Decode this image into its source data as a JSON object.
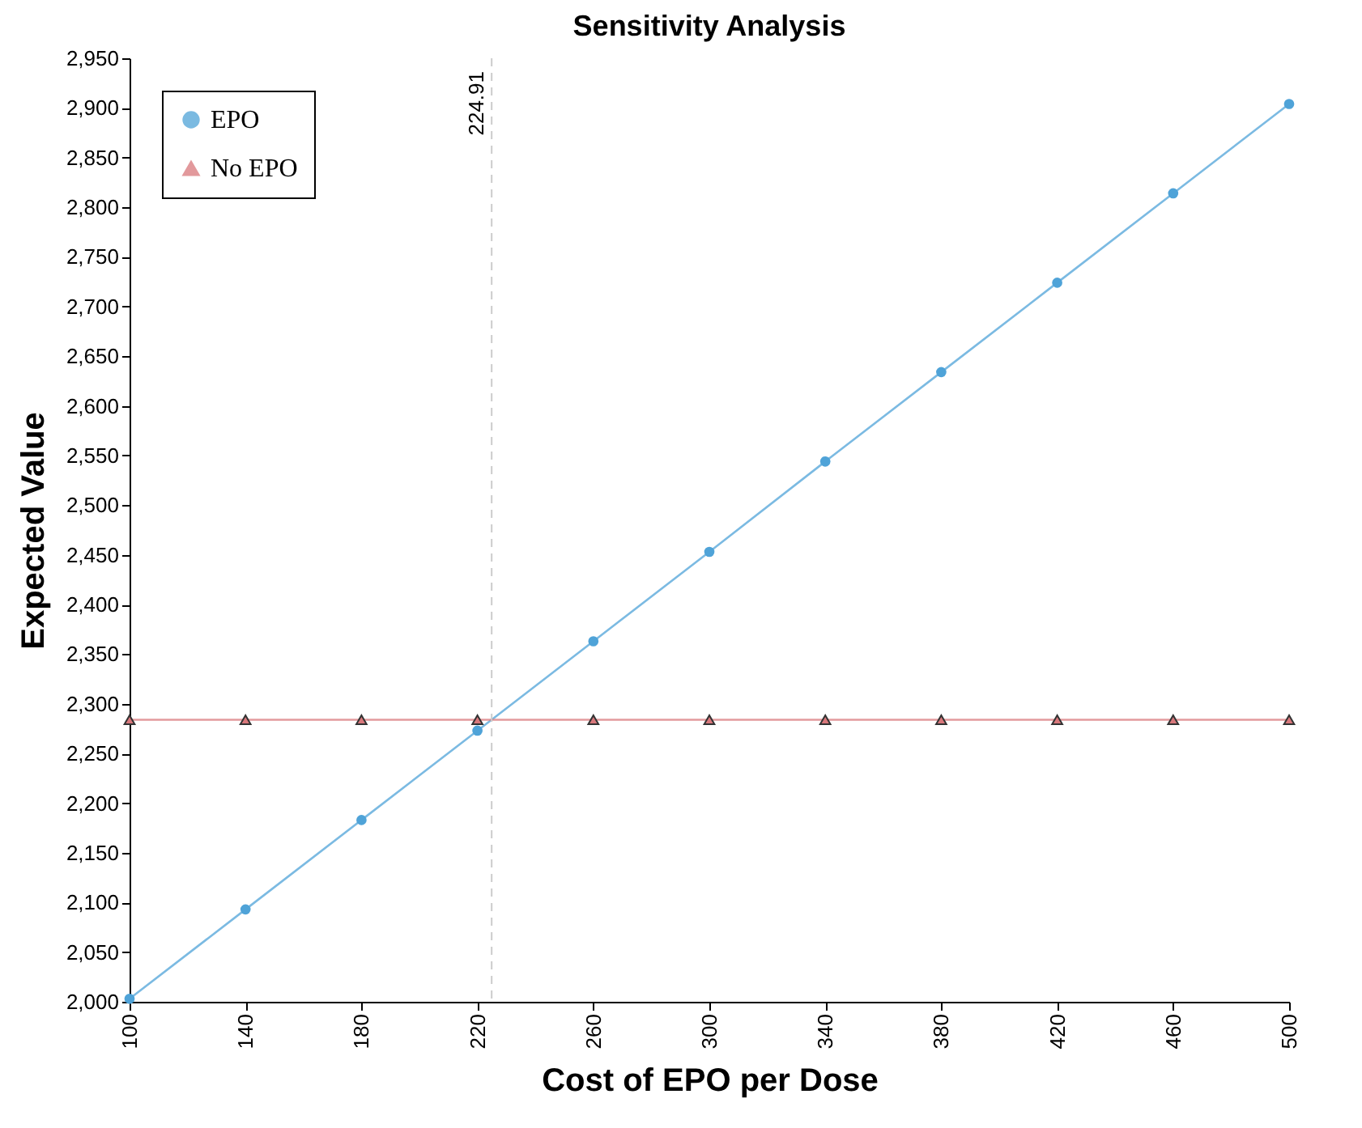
{
  "chart_data": {
    "type": "line",
    "title": "Sensitivity Analysis",
    "xlabel": "Cost of EPO per Dose",
    "ylabel": "Expected Value",
    "x": [
      100,
      140,
      180,
      220,
      260,
      300,
      340,
      380,
      420,
      460,
      500
    ],
    "series": [
      {
        "name": "EPO",
        "color": "#4fa3d8",
        "marker": "circle",
        "values": [
          2003,
          2093,
          2183,
          2273,
          2363,
          2453,
          2544,
          2634,
          2724,
          2814,
          2904
        ]
      },
      {
        "name": "No EPO",
        "color": "#d9787c",
        "marker": "triangle",
        "values": [
          2284,
          2284,
          2284,
          2284,
          2284,
          2284,
          2284,
          2284,
          2284,
          2284,
          2284
        ]
      }
    ],
    "xlim": [
      100,
      500
    ],
    "xticks": [
      100,
      140,
      180,
      220,
      260,
      300,
      340,
      380,
      420,
      460,
      500
    ],
    "ylim": [
      2000,
      2950
    ],
    "yticks": [
      {
        "value": 2000,
        "label": "2,000"
      },
      {
        "value": 2050,
        "label": "2,050"
      },
      {
        "value": 2100,
        "label": "2,100"
      },
      {
        "value": 2150,
        "label": "2,150"
      },
      {
        "value": 2200,
        "label": "2,200"
      },
      {
        "value": 2250,
        "label": "2,250"
      },
      {
        "value": 2300,
        "label": "2,300"
      },
      {
        "value": 2350,
        "label": "2,350"
      },
      {
        "value": 2400,
        "label": "2,400"
      },
      {
        "value": 2450,
        "label": "2,450"
      },
      {
        "value": 2500,
        "label": "2,500"
      },
      {
        "value": 2550,
        "label": "2,550"
      },
      {
        "value": 2600,
        "label": "2,600"
      },
      {
        "value": 2650,
        "label": "2,650"
      },
      {
        "value": 2700,
        "label": "2,700"
      },
      {
        "value": 2750,
        "label": "2,750"
      },
      {
        "value": 2800,
        "label": "2,800"
      },
      {
        "value": 2850,
        "label": "2,850"
      },
      {
        "value": 2900,
        "label": "2,900"
      },
      {
        "value": 2950,
        "label": "2,950"
      }
    ],
    "ref_lines": [
      {
        "axis": "x",
        "value": 224.91,
        "label": "224.91",
        "color": "#cccccc",
        "line_style": "dashed"
      }
    ],
    "grid": false,
    "legend": "top left"
  }
}
